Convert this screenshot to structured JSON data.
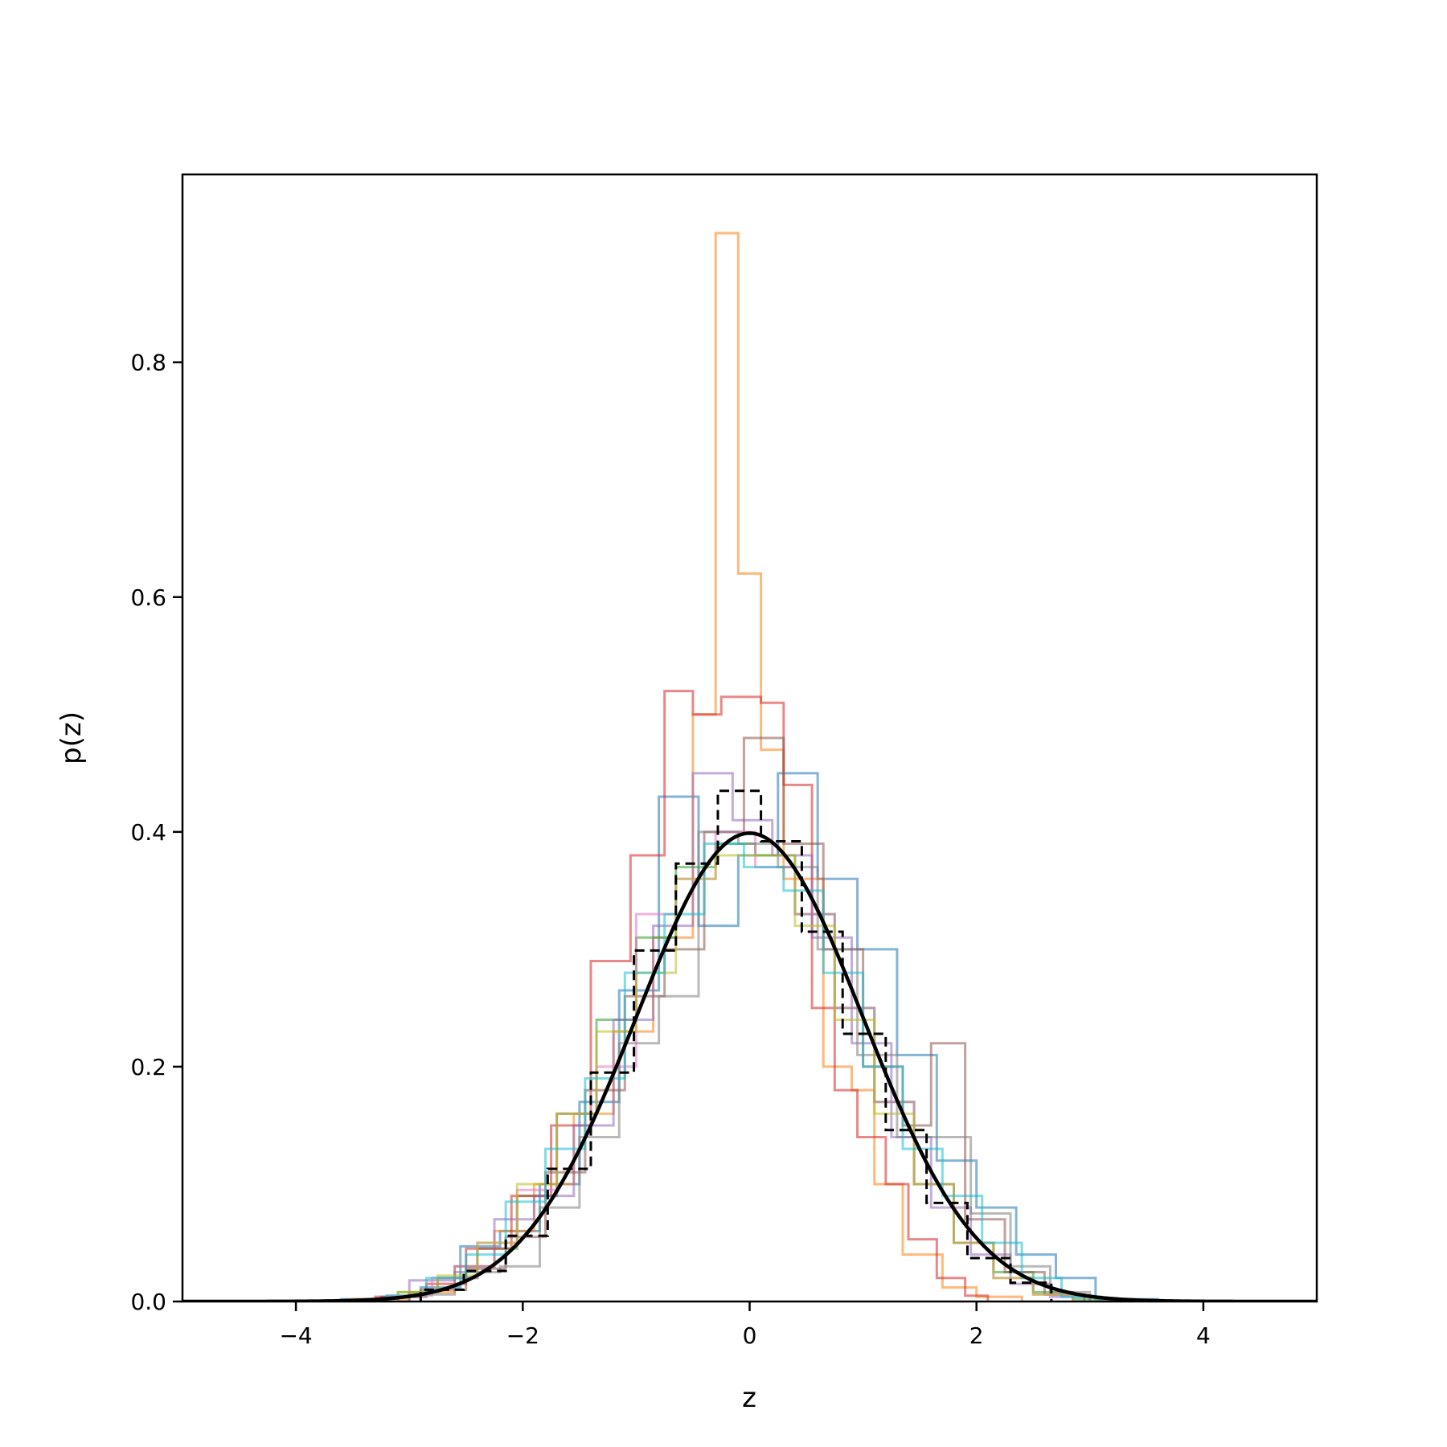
{
  "chart_data": {
    "type": "line",
    "title": "",
    "xlabel": "z",
    "ylabel": "p(z)",
    "xlim": [
      -5,
      5
    ],
    "ylim": [
      0,
      0.96
    ],
    "xticks": [
      -4,
      -2,
      0,
      2,
      4
    ],
    "yticks": [
      0.0,
      0.2,
      0.4,
      0.6,
      0.8
    ],
    "xtick_labels": [
      "−4",
      "−2",
      "0",
      "2",
      "4"
    ],
    "ytick_labels": [
      "0.0",
      "0.2",
      "0.4",
      "0.6",
      "0.8"
    ],
    "grid": false,
    "reference_curve": {
      "style": "solid",
      "color": "#000000",
      "description_values": "standard normal pdf",
      "x_range": [
        -5,
        5
      ],
      "mean": 0,
      "std": 1
    },
    "reference_histogram": {
      "style": "dashed",
      "color": "#000000",
      "edges": [
        -2.9,
        -2.52,
        -2.15,
        -1.78,
        -1.4,
        -1.02,
        -0.65,
        -0.28,
        0.1,
        0.46,
        0.82,
        1.2,
        1.56,
        1.92,
        2.3,
        2.66
      ],
      "values": [
        0.01,
        0.026,
        0.056,
        0.113,
        0.195,
        0.299,
        0.373,
        0.435,
        0.392,
        0.315,
        0.228,
        0.146,
        0.084,
        0.037,
        0.016
      ]
    },
    "series": [
      {
        "color": "#1f77b4",
        "edges": [
          -3.6,
          -3.25,
          -2.9,
          -2.55,
          -2.2,
          -1.85,
          -1.5,
          -1.15,
          -0.8,
          -0.45,
          -0.1,
          0.25,
          0.6,
          0.95,
          1.3,
          1.65,
          2.0,
          2.35,
          2.7,
          3.05,
          3.6
        ],
        "values": [
          0.002,
          0.004,
          0.012,
          0.047,
          0.06,
          0.1,
          0.17,
          0.265,
          0.43,
          0.32,
          0.38,
          0.45,
          0.36,
          0.3,
          0.21,
          0.12,
          0.08,
          0.04,
          0.02,
          0.002
        ]
      },
      {
        "color": "#ff7f0e",
        "edges": [
          -3.5,
          -3.0,
          -2.6,
          -2.25,
          -1.9,
          -1.55,
          -1.2,
          -0.85,
          -0.5,
          -0.3,
          -0.1,
          0.1,
          0.3,
          0.65,
          0.9,
          1.1,
          1.35,
          1.7,
          2.0,
          2.4
        ],
        "values": [
          0.002,
          0.008,
          0.03,
          0.06,
          0.1,
          0.16,
          0.23,
          0.31,
          0.5,
          0.91,
          0.62,
          0.47,
          0.36,
          0.2,
          0.18,
          0.1,
          0.04,
          0.012,
          0.004
        ]
      },
      {
        "color": "#2ca02c",
        "edges": [
          -3.1,
          -2.75,
          -2.4,
          -2.05,
          -1.7,
          -1.35,
          -1.0,
          -0.65,
          -0.3,
          0.05,
          0.4,
          0.75,
          1.1,
          1.45,
          1.8,
          2.15,
          2.5,
          2.85,
          3.2
        ],
        "values": [
          0.008,
          0.02,
          0.045,
          0.09,
          0.16,
          0.24,
          0.31,
          0.37,
          0.39,
          0.38,
          0.33,
          0.25,
          0.17,
          0.1,
          0.05,
          0.025,
          0.008,
          0.002
        ]
      },
      {
        "color": "#d62728",
        "edges": [
          -3.3,
          -2.85,
          -2.5,
          -2.1,
          -1.75,
          -1.4,
          -1.05,
          -0.75,
          -0.5,
          -0.25,
          0.1,
          0.3,
          0.55,
          0.75,
          0.95,
          1.2,
          1.4,
          1.65,
          1.9,
          2.1
        ],
        "values": [
          0.004,
          0.015,
          0.045,
          0.09,
          0.15,
          0.29,
          0.38,
          0.52,
          0.5,
          0.515,
          0.51,
          0.44,
          0.25,
          0.18,
          0.14,
          0.1,
          0.053,
          0.02,
          0.005
        ]
      },
      {
        "color": "#9467bd",
        "edges": [
          -3.0,
          -2.6,
          -2.25,
          -1.9,
          -1.55,
          -1.2,
          -0.85,
          -0.5,
          -0.15,
          0.2,
          0.55,
          0.9,
          1.25,
          1.6,
          1.95,
          2.3,
          2.65,
          3.0
        ],
        "values": [
          0.018,
          0.03,
          0.07,
          0.09,
          0.15,
          0.24,
          0.32,
          0.45,
          0.41,
          0.38,
          0.31,
          0.22,
          0.14,
          0.08,
          0.04,
          0.015,
          0.004
        ]
      },
      {
        "color": "#8c564b",
        "edges": [
          -2.9,
          -2.5,
          -2.15,
          -1.8,
          -1.45,
          -1.1,
          -0.75,
          -0.4,
          -0.05,
          0.3,
          0.65,
          1.0,
          1.35,
          1.6,
          1.9,
          2.25,
          2.6,
          2.95
        ],
        "values": [
          0.01,
          0.028,
          0.055,
          0.11,
          0.18,
          0.26,
          0.3,
          0.4,
          0.48,
          0.39,
          0.3,
          0.2,
          0.15,
          0.22,
          0.07,
          0.025,
          0.006
        ]
      },
      {
        "color": "#e377c2",
        "edges": [
          -3.2,
          -2.8,
          -2.4,
          -2.05,
          -1.7,
          -1.35,
          -1.0,
          -0.65,
          -0.3,
          0.05,
          0.4,
          0.75,
          1.1,
          1.45,
          1.8,
          2.15,
          2.5,
          2.85
        ],
        "values": [
          0.005,
          0.02,
          0.05,
          0.095,
          0.16,
          0.2,
          0.33,
          0.36,
          0.4,
          0.37,
          0.33,
          0.25,
          0.17,
          0.1,
          0.05,
          0.02,
          0.006
        ]
      },
      {
        "color": "#7f7f7f",
        "edges": [
          -3.0,
          -2.6,
          -2.2,
          -1.85,
          -1.5,
          -1.15,
          -0.8,
          -0.45,
          -0.1,
          0.25,
          0.6,
          0.95,
          1.3,
          1.65,
          1.95,
          2.3,
          2.65,
          3.0
        ],
        "values": [
          0.006,
          0.025,
          0.03,
          0.08,
          0.14,
          0.22,
          0.26,
          0.4,
          0.39,
          0.37,
          0.3,
          0.21,
          0.14,
          0.14,
          0.075,
          0.03,
          0.008
        ]
      },
      {
        "color": "#bcbd22",
        "edges": [
          -3.1,
          -2.75,
          -2.4,
          -2.05,
          -1.7,
          -1.35,
          -1.0,
          -0.65,
          -0.3,
          0.05,
          0.4,
          0.75,
          1.1,
          1.45,
          1.8,
          2.15,
          2.5,
          2.85
        ],
        "values": [
          0.008,
          0.022,
          0.05,
          0.1,
          0.16,
          0.23,
          0.28,
          0.36,
          0.38,
          0.38,
          0.32,
          0.24,
          0.16,
          0.1,
          0.05,
          0.02,
          0.006
        ]
      },
      {
        "color": "#17becf",
        "edges": [
          -3.2,
          -2.85,
          -2.5,
          -2.15,
          -1.8,
          -1.45,
          -1.1,
          -0.75,
          -0.4,
          -0.05,
          0.3,
          0.65,
          1.0,
          1.35,
          1.7,
          2.05,
          2.4,
          2.75,
          3.1
        ],
        "values": [
          0.005,
          0.02,
          0.04,
          0.085,
          0.13,
          0.19,
          0.28,
          0.33,
          0.39,
          0.37,
          0.35,
          0.28,
          0.2,
          0.13,
          0.09,
          0.05,
          0.02,
          0.004
        ]
      }
    ]
  }
}
